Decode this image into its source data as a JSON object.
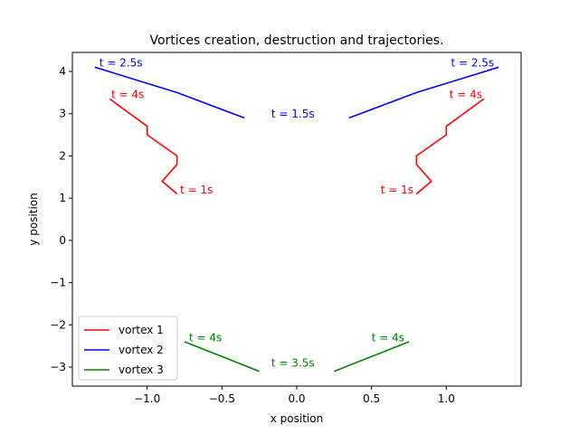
{
  "chart_data": {
    "type": "line",
    "title": "Vortices creation, destruction and trajectories.",
    "xlabel": "x position",
    "ylabel": "y position",
    "xlim": [
      -1.5,
      1.5
    ],
    "ylim": [
      -3.45,
      4.45
    ],
    "xticks": [
      -1.0,
      -0.5,
      0.0,
      0.5,
      1.0
    ],
    "xtick_labels": [
      "−1.0",
      "−0.5",
      "0.0",
      "0.5",
      "1.0"
    ],
    "yticks": [
      -3,
      -2,
      -1,
      0,
      1,
      2,
      3,
      4
    ],
    "ytick_labels": [
      "−3",
      "−2",
      "−1",
      "0",
      "1",
      "2",
      "3",
      "4"
    ],
    "grid": false,
    "legend_position": "lower-left",
    "series": [
      {
        "name": "vortex 1",
        "color": "#ff0000",
        "paths": [
          {
            "x": [
              -0.8,
              -0.9,
              -0.8,
              -0.8,
              -1.0,
              -1.0,
              -1.25
            ],
            "y": [
              1.1,
              1.4,
              1.8,
              2.0,
              2.5,
              2.7,
              3.35
            ]
          },
          {
            "x": [
              0.8,
              0.9,
              0.8,
              0.8,
              1.0,
              1.0,
              1.25
            ],
            "y": [
              1.1,
              1.4,
              1.8,
              2.0,
              2.5,
              2.7,
              3.35
            ]
          }
        ]
      },
      {
        "name": "vortex 2",
        "color": "#0000ff",
        "paths": [
          {
            "x": [
              -0.35,
              -0.8,
              -1.35
            ],
            "y": [
              2.9,
              3.5,
              4.1
            ]
          },
          {
            "x": [
              0.35,
              0.8,
              1.35
            ],
            "y": [
              2.9,
              3.5,
              4.1
            ]
          }
        ]
      },
      {
        "name": "vortex 3",
        "color": "#008000",
        "paths": [
          {
            "x": [
              -0.25,
              -0.75
            ],
            "y": [
              -3.1,
              -2.4
            ]
          },
          {
            "x": [
              0.25,
              0.75
            ],
            "y": [
              -3.1,
              -2.4
            ]
          }
        ]
      }
    ],
    "annotations": [
      {
        "text": "t = 2.5s",
        "x": -1.32,
        "y": 4.2,
        "color": "#0000ff",
        "anchor": "start"
      },
      {
        "text": "t = 2.5s",
        "x": 1.32,
        "y": 4.2,
        "color": "#0000ff",
        "anchor": "end"
      },
      {
        "text": "t = 4s",
        "x": -1.24,
        "y": 3.45,
        "color": "#ff0000",
        "anchor": "start"
      },
      {
        "text": "t = 4s",
        "x": 1.24,
        "y": 3.45,
        "color": "#ff0000",
        "anchor": "end"
      },
      {
        "text": "t = 1.5s",
        "x": -0.17,
        "y": 2.99,
        "color": "#0000ff",
        "anchor": "start"
      },
      {
        "text": "t = 1s",
        "x": -0.78,
        "y": 1.2,
        "color": "#ff0000",
        "anchor": "start"
      },
      {
        "text": "t = 1s",
        "x": 0.78,
        "y": 1.2,
        "color": "#ff0000",
        "anchor": "end"
      },
      {
        "text": "t = 4s",
        "x": -0.72,
        "y": -2.3,
        "color": "#008000",
        "anchor": "start"
      },
      {
        "text": "t = 4s",
        "x": 0.72,
        "y": -2.3,
        "color": "#008000",
        "anchor": "end"
      },
      {
        "text": "t = 3.5s",
        "x": -0.17,
        "y": -2.9,
        "color": "#008000",
        "anchor": "start"
      }
    ]
  }
}
